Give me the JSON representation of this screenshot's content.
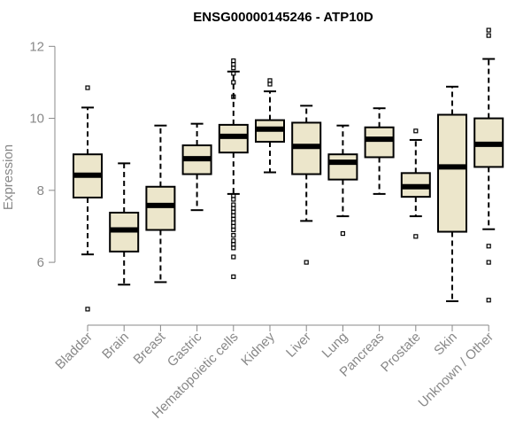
{
  "chart_data": {
    "type": "boxplot",
    "title": "ENSG00000145246 - ATP10D",
    "xlabel": "",
    "ylabel": "Expression",
    "ylim": [
      4.55,
      12.5
    ],
    "yticks": [
      6,
      8,
      10,
      12
    ],
    "yticks_labels": [
      "6",
      "8",
      "10",
      "12"
    ],
    "categories": [
      "Bladder",
      "Brain",
      "Breast",
      "Gastric",
      "Hematopoietic cells",
      "Kidney",
      "Liver",
      "Lung",
      "Pancreas",
      "Prostate",
      "Skin",
      "Unknown / Other"
    ],
    "boxes": [
      {
        "label": "Bladder",
        "q1": 7.8,
        "median": 8.42,
        "q3": 9.0,
        "whisker_low": 6.22,
        "whisker_high": 10.3,
        "outliers": [
          10.85,
          4.7
        ]
      },
      {
        "label": "Brain",
        "q1": 6.3,
        "median": 6.9,
        "q3": 7.38,
        "whisker_low": 5.38,
        "whisker_high": 8.75,
        "outliers": []
      },
      {
        "label": "Breast",
        "q1": 6.9,
        "median": 7.58,
        "q3": 8.1,
        "whisker_low": 5.45,
        "whisker_high": 9.8,
        "outliers": []
      },
      {
        "label": "Gastric",
        "q1": 8.45,
        "median": 8.88,
        "q3": 9.25,
        "whisker_low": 7.45,
        "whisker_high": 9.85,
        "outliers": []
      },
      {
        "label": "Hematopoietic cells",
        "q1": 9.05,
        "median": 9.5,
        "q3": 9.82,
        "whisker_low": 7.9,
        "whisker_high": 11.3,
        "outliers": [
          11.6,
          11.5,
          11.4,
          11.25,
          11.0,
          10.6,
          7.85,
          7.75,
          7.6,
          7.5,
          7.4,
          7.3,
          7.2,
          7.1,
          7.0,
          6.9,
          6.75,
          6.6,
          6.5,
          6.4,
          6.15,
          5.6
        ]
      },
      {
        "label": "Kidney",
        "q1": 9.35,
        "median": 9.7,
        "q3": 9.95,
        "whisker_low": 8.5,
        "whisker_high": 10.75,
        "outliers": [
          11.05,
          10.95
        ]
      },
      {
        "label": "Liver",
        "q1": 8.45,
        "median": 9.22,
        "q3": 9.88,
        "whisker_low": 7.15,
        "whisker_high": 10.35,
        "outliers": [
          6.0
        ]
      },
      {
        "label": "Lung",
        "q1": 8.3,
        "median": 8.78,
        "q3": 9.0,
        "whisker_low": 7.28,
        "whisker_high": 9.8,
        "outliers": [
          6.8
        ]
      },
      {
        "label": "Pancreas",
        "q1": 8.92,
        "median": 9.42,
        "q3": 9.75,
        "whisker_low": 7.9,
        "whisker_high": 10.28,
        "outliers": []
      },
      {
        "label": "Prostate",
        "q1": 7.82,
        "median": 8.1,
        "q3": 8.48,
        "whisker_low": 7.28,
        "whisker_high": 9.4,
        "outliers": [
          9.65,
          6.72
        ]
      },
      {
        "label": "Skin",
        "q1": 6.85,
        "median": 8.65,
        "q3": 10.1,
        "whisker_low": 4.92,
        "whisker_high": 10.88,
        "outliers": []
      },
      {
        "label": "Unknown / Other",
        "q1": 8.65,
        "median": 9.28,
        "q3": 10.0,
        "whisker_low": 6.92,
        "whisker_high": 11.65,
        "outliers": [
          12.45,
          12.3,
          6.45,
          6.0,
          4.95
        ]
      }
    ]
  }
}
